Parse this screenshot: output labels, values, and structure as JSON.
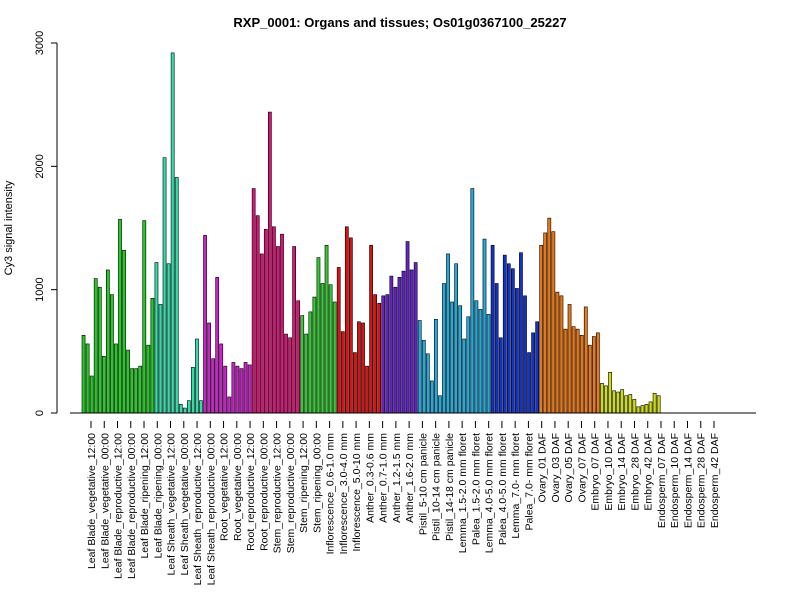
{
  "chart_data": {
    "type": "bar",
    "title": "RXP_0001: Organs and tissues; Os01g0367100_25227",
    "ylabel": "Cy3 signal intensity",
    "xlabel": "",
    "ylim": [
      0,
      3000
    ],
    "yticks": [
      0,
      1000,
      2000,
      3000
    ],
    "grid": false,
    "legend": "none",
    "groups": [
      {
        "color": "#22cc22",
        "labels": [
          "Leaf Blade_vegetative_12:00",
          "Leaf Blade_vegetative_00:00",
          "Leaf Blade_reproductive_12:00",
          "Leaf Blade_reproductive_00:00",
          "Leaf Blade_ripening_12:00",
          "Leaf Blade_ripening_00:00"
        ],
        "values": [
          630,
          560,
          300,
          1090,
          1020,
          460,
          1160,
          960,
          560,
          1570,
          1320,
          510,
          360,
          360,
          380,
          1560,
          550,
          930
        ]
      },
      {
        "color": "#33ddaa",
        "labels": [
          "Leaf Sheath_vegetative_12:00",
          "Leaf Sheath_vegetative_00:00",
          "Leaf Sheath_reproductive_12:00",
          "Leaf Sheath_reproductive_00:00"
        ],
        "values": [
          1220,
          880,
          2070,
          1210,
          2920,
          1910,
          70,
          40,
          100,
          370,
          600,
          100
        ]
      },
      {
        "color": "#cc22cc",
        "labels": [
          "Root_vegetative_12:00",
          "Root_vegetative_00:00",
          "Root_reproductive_12:00",
          "Root_reproductive_00:00"
        ],
        "values": [
          1440,
          730,
          440,
          1100,
          560,
          380,
          130,
          410,
          380,
          360,
          410,
          390
        ]
      },
      {
        "color": "#dd1177",
        "labels": [
          "Stem_reproductive_12:00",
          "Stem_reproductive_00:00",
          "Stem_ripening_12:00",
          "Stem_ripening_00:00"
        ],
        "values": [
          1820,
          1600,
          1290,
          1490,
          2440,
          1510,
          1350,
          1450,
          640,
          610,
          1350,
          910
        ]
      },
      {
        "color": "#33cc33",
        "labels": [
          "Inflorescence_0.6-1.0 mm",
          "Inflorescence_3.0-4.0 mm",
          "Inflorescence_5.0-10 mm"
        ],
        "values": [
          790,
          640,
          820,
          940,
          1260,
          1050,
          1360,
          1040,
          900
        ]
      },
      {
        "color": "#dd1111",
        "labels": [
          "Anther_0.3-0.6 mm",
          "Anther_0.7-1.0 mm",
          "Anther_1.2-1.5 mm",
          "Anther_1.6-2.0 mm"
        ],
        "values": [
          1180,
          660,
          1510,
          1420,
          490,
          740,
          730,
          380,
          1360,
          960,
          890
        ]
      },
      {
        "color": "#6622cc",
        "labels": [
          "Pistil_5-10 cm panicle",
          "Pistil_10-14 cm panicle",
          "Pistil_14-18 cm panicle"
        ],
        "values": [
          950,
          960,
          1110,
          1020,
          1100,
          1150,
          1390,
          1160,
          1220
        ]
      },
      {
        "color": "#22aadd",
        "labels": [
          "Lemma_1.5-2.0 mm floret",
          "Palea_1.5-2.0 mm floret",
          "Lemma_4.0-5.0 mm floret",
          "Palea_4.0-5.0 mm floret",
          "Lemma_7.0- mm floret",
          "Palea_7.0- mm floret"
        ],
        "values": [
          750,
          590,
          480,
          260,
          760,
          140,
          1050,
          1290,
          900,
          1210,
          870,
          600,
          780,
          1820,
          910,
          840,
          1410,
          800
        ]
      },
      {
        "color": "#1133cc",
        "labels": [
          "Ovary_01 DAF",
          "Ovary_03 DAF",
          "Ovary_05 DAF",
          "Ovary_07 DAF"
        ],
        "values": [
          1360,
          1050,
          610,
          1280,
          1210,
          1170,
          1010,
          1300,
          950,
          490,
          650,
          740
        ]
      },
      {
        "color": "#ee7711",
        "labels": [
          "Embryo_07 DAF",
          "Embryo_10 DAF",
          "Embryo_14 DAF",
          "Embryo_28 DAF",
          "Embryo_42 DAF"
        ],
        "values": [
          1360,
          1460,
          1580,
          1470,
          980,
          950,
          680,
          880,
          700,
          680,
          630,
          860,
          550,
          620,
          650
        ]
      },
      {
        "color": "#ccdd11",
        "labels": [
          "Endosperm_07 DAF",
          "Endosperm_10 DAF",
          "Endosperm_14 DAF",
          "Endosperm_28 DAF",
          "Endosperm_42 DAF"
        ],
        "values": [
          240,
          220,
          330,
          180,
          170,
          190,
          140,
          150,
          110,
          50,
          60,
          70,
          90,
          160,
          140
        ]
      }
    ]
  }
}
